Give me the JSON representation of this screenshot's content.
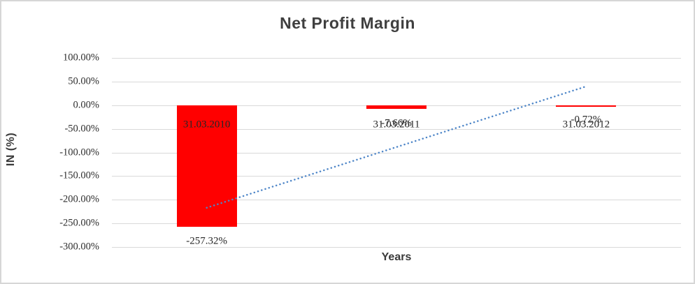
{
  "window": {
    "background": "#ffffff",
    "border_color": "#d6d6d6"
  },
  "chart_data": {
    "type": "bar",
    "title": "Net Profit Margin",
    "xlabel": "Years",
    "ylabel": "IN (%)",
    "categories": [
      "31.03.2010",
      "31.03.2011",
      "31.03.2012"
    ],
    "values": [
      -257.32,
      -7.66,
      -0.72
    ],
    "data_labels": [
      "-257.32%",
      "-7.66%",
      "-0.72%"
    ],
    "ylim": [
      -300,
      100
    ],
    "ytick_values": [
      100,
      50,
      0,
      -50,
      -100,
      -150,
      -200,
      -250,
      -300
    ],
    "ytick_labels": [
      "100.00%",
      "50.00%",
      "0.00%",
      "-50.00%",
      "-100.00%",
      "-150.00%",
      "-200.00%",
      "-250.00%",
      "-300.00%"
    ],
    "grid": true,
    "legend": "none",
    "bar_color": "#ff0000",
    "gridline_color": "#d9d9d9",
    "title_color": "#3f3f3f",
    "label_color": "#262626",
    "trendline": {
      "type": "linear",
      "style": "dotted",
      "color": "#4e86c8",
      "start_category": "31.03.2010",
      "end_category": "31.03.2012",
      "start_value": -216.9,
      "end_value": 39.7
    }
  }
}
